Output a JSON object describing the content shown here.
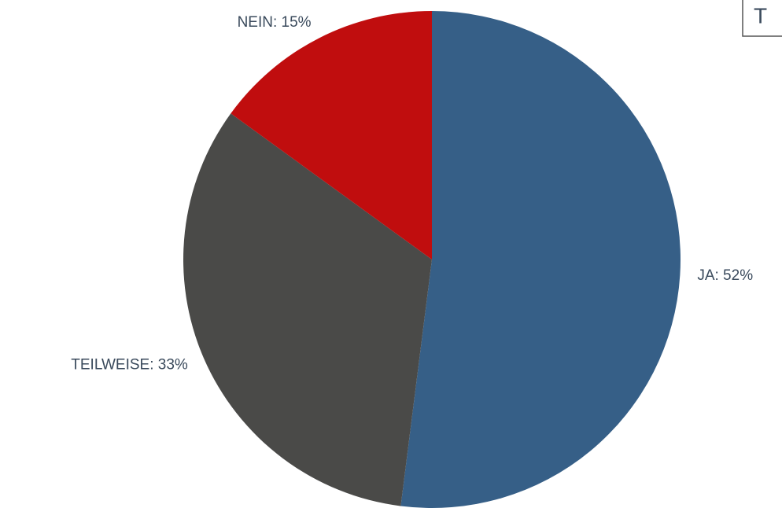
{
  "chart_data": {
    "type": "pie",
    "title": "T",
    "values": [
      52,
      33,
      15
    ],
    "value_labels": [
      "JA: 52%",
      "TEILWEISE: 33%",
      "NEIN: 15%"
    ],
    "colors": [
      "#365f87",
      "#4a4a48",
      "#c00d0e"
    ]
  }
}
